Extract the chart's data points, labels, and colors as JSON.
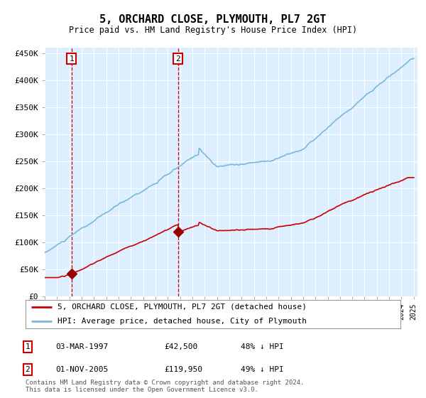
{
  "title": "5, ORCHARD CLOSE, PLYMOUTH, PL7 2GT",
  "subtitle": "Price paid vs. HM Land Registry's House Price Index (HPI)",
  "legend_line1": "5, ORCHARD CLOSE, PLYMOUTH, PL7 2GT (detached house)",
  "legend_line2": "HPI: Average price, detached house, City of Plymouth",
  "footnote": "Contains HM Land Registry data © Crown copyright and database right 2024.\nThis data is licensed under the Open Government Licence v3.0.",
  "sale1_date": "03-MAR-1997",
  "sale1_price": "£42,500",
  "sale1_hpi": "48% ↓ HPI",
  "sale2_date": "01-NOV-2005",
  "sale2_price": "£119,950",
  "sale2_hpi": "49% ↓ HPI",
  "hpi_color": "#7ab8d9",
  "price_color": "#cc0000",
  "fig_bg": "#ffffff",
  "chart_bg": "#ddeeff",
  "vline_color": "#cc0000",
  "marker_color": "#990000",
  "ylim": [
    0,
    460000
  ],
  "yticks": [
    0,
    50000,
    100000,
    150000,
    200000,
    250000,
    300000,
    350000,
    400000,
    450000
  ],
  "sale1_year": 1997.17,
  "sale2_year": 2005.83,
  "sale1_price_val": 42500,
  "sale2_price_val": 119950
}
